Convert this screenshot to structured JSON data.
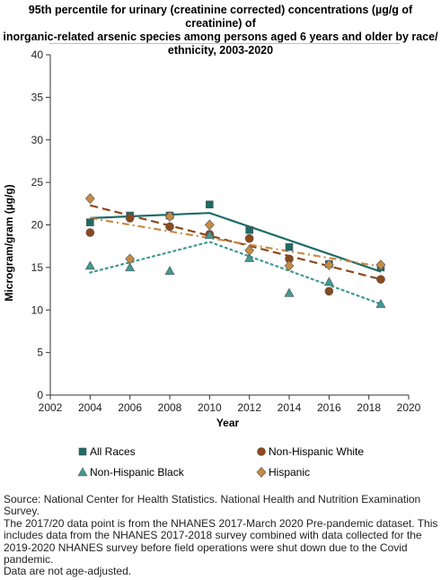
{
  "title_lines": [
    "95th percentile for urinary (creatinine corrected) concentrations (µg/g of creatinine) of",
    "inorganic-related arsenic species among persons aged 6 years and older by race/",
    "ethnicity, 2003-2020"
  ],
  "notes": [
    "Source: National Center for Health Statistics. National Health and Nutrition Examination",
    "Survey.",
    "The 2017/20 data point is from the NHANES 2017-March 2020 Pre-pandemic dataset. This",
    "includes data from the NHANES 2017-2018 survey combined with data collected for the",
    "2019-2020 NHANES survey before field operations were shut down due to the Covid",
    "pandemic.",
    "Data are not age-adjusted."
  ],
  "chart_data": {
    "type": "scatter",
    "xlabel": "Year",
    "ylabel": "Microgram/gram (µg/g)",
    "xlim": [
      2002,
      2020
    ],
    "ylim": [
      0,
      40
    ],
    "x_ticks": [
      2002,
      2004,
      2006,
      2008,
      2010,
      2012,
      2014,
      2016,
      2018,
      2020
    ],
    "y_ticks": [
      0,
      5,
      10,
      15,
      20,
      25,
      30,
      35,
      40
    ],
    "grid": false,
    "legend_position": "bottom",
    "series": [
      {
        "name": "All Races",
        "marker": "square",
        "color": "#1e6b67",
        "trend_style": "solid",
        "points": [
          {
            "x": 2004,
            "y": 20.3
          },
          {
            "x": 2006,
            "y": 21.1
          },
          {
            "x": 2008,
            "y": 21.1
          },
          {
            "x": 2010,
            "y": 22.4
          },
          {
            "x": 2012,
            "y": 19.4
          },
          {
            "x": 2014,
            "y": 17.4
          },
          {
            "x": 2016,
            "y": 15.4
          },
          {
            "x": 2018.6,
            "y": 15.0
          }
        ],
        "trend": [
          {
            "x": 2004,
            "y": 20.8
          },
          {
            "x": 2010,
            "y": 21.4
          },
          {
            "x": 2018.6,
            "y": 14.5
          }
        ]
      },
      {
        "name": "Non-Hispanic White",
        "marker": "circle",
        "color": "#8a4a1c",
        "trend_style": "dashed",
        "points": [
          {
            "x": 2004,
            "y": 19.1
          },
          {
            "x": 2006,
            "y": 20.8
          },
          {
            "x": 2008,
            "y": 19.8
          },
          {
            "x": 2010,
            "y": 18.9
          },
          {
            "x": 2012,
            "y": 18.4
          },
          {
            "x": 2014,
            "y": 16.0
          },
          {
            "x": 2016,
            "y": 12.2
          },
          {
            "x": 2018.6,
            "y": 13.6
          }
        ],
        "trend": [
          {
            "x": 2004,
            "y": 22.3
          },
          {
            "x": 2018.6,
            "y": 13.6
          }
        ]
      },
      {
        "name": "Non-Hispanic Black",
        "marker": "triangle",
        "color": "#3f9a93",
        "trend_style": "dotted",
        "points": [
          {
            "x": 2004,
            "y": 15.2
          },
          {
            "x": 2006,
            "y": 15.0
          },
          {
            "x": 2008,
            "y": 14.6
          },
          {
            "x": 2010,
            "y": 18.8
          },
          {
            "x": 2012,
            "y": 16.1
          },
          {
            "x": 2014,
            "y": 12.0
          },
          {
            "x": 2016,
            "y": 13.3
          },
          {
            "x": 2018.6,
            "y": 10.7
          }
        ],
        "trend": [
          {
            "x": 2004,
            "y": 14.4
          },
          {
            "x": 2010,
            "y": 18.0
          },
          {
            "x": 2018.6,
            "y": 10.7
          }
        ]
      },
      {
        "name": "Hispanic",
        "marker": "diamond",
        "color": "#c58b45",
        "trend_style": "dashdot",
        "points": [
          {
            "x": 2004,
            "y": 23.1
          },
          {
            "x": 2006,
            "y": 16.0
          },
          {
            "x": 2008,
            "y": 21.0
          },
          {
            "x": 2010,
            "y": 20.0
          },
          {
            "x": 2012,
            "y": 17.0
          },
          {
            "x": 2014,
            "y": 15.2
          },
          {
            "x": 2016,
            "y": 15.3
          },
          {
            "x": 2018.6,
            "y": 15.3
          }
        ],
        "trend": [
          {
            "x": 2004,
            "y": 20.8
          },
          {
            "x": 2018.6,
            "y": 15.1
          }
        ]
      }
    ]
  }
}
